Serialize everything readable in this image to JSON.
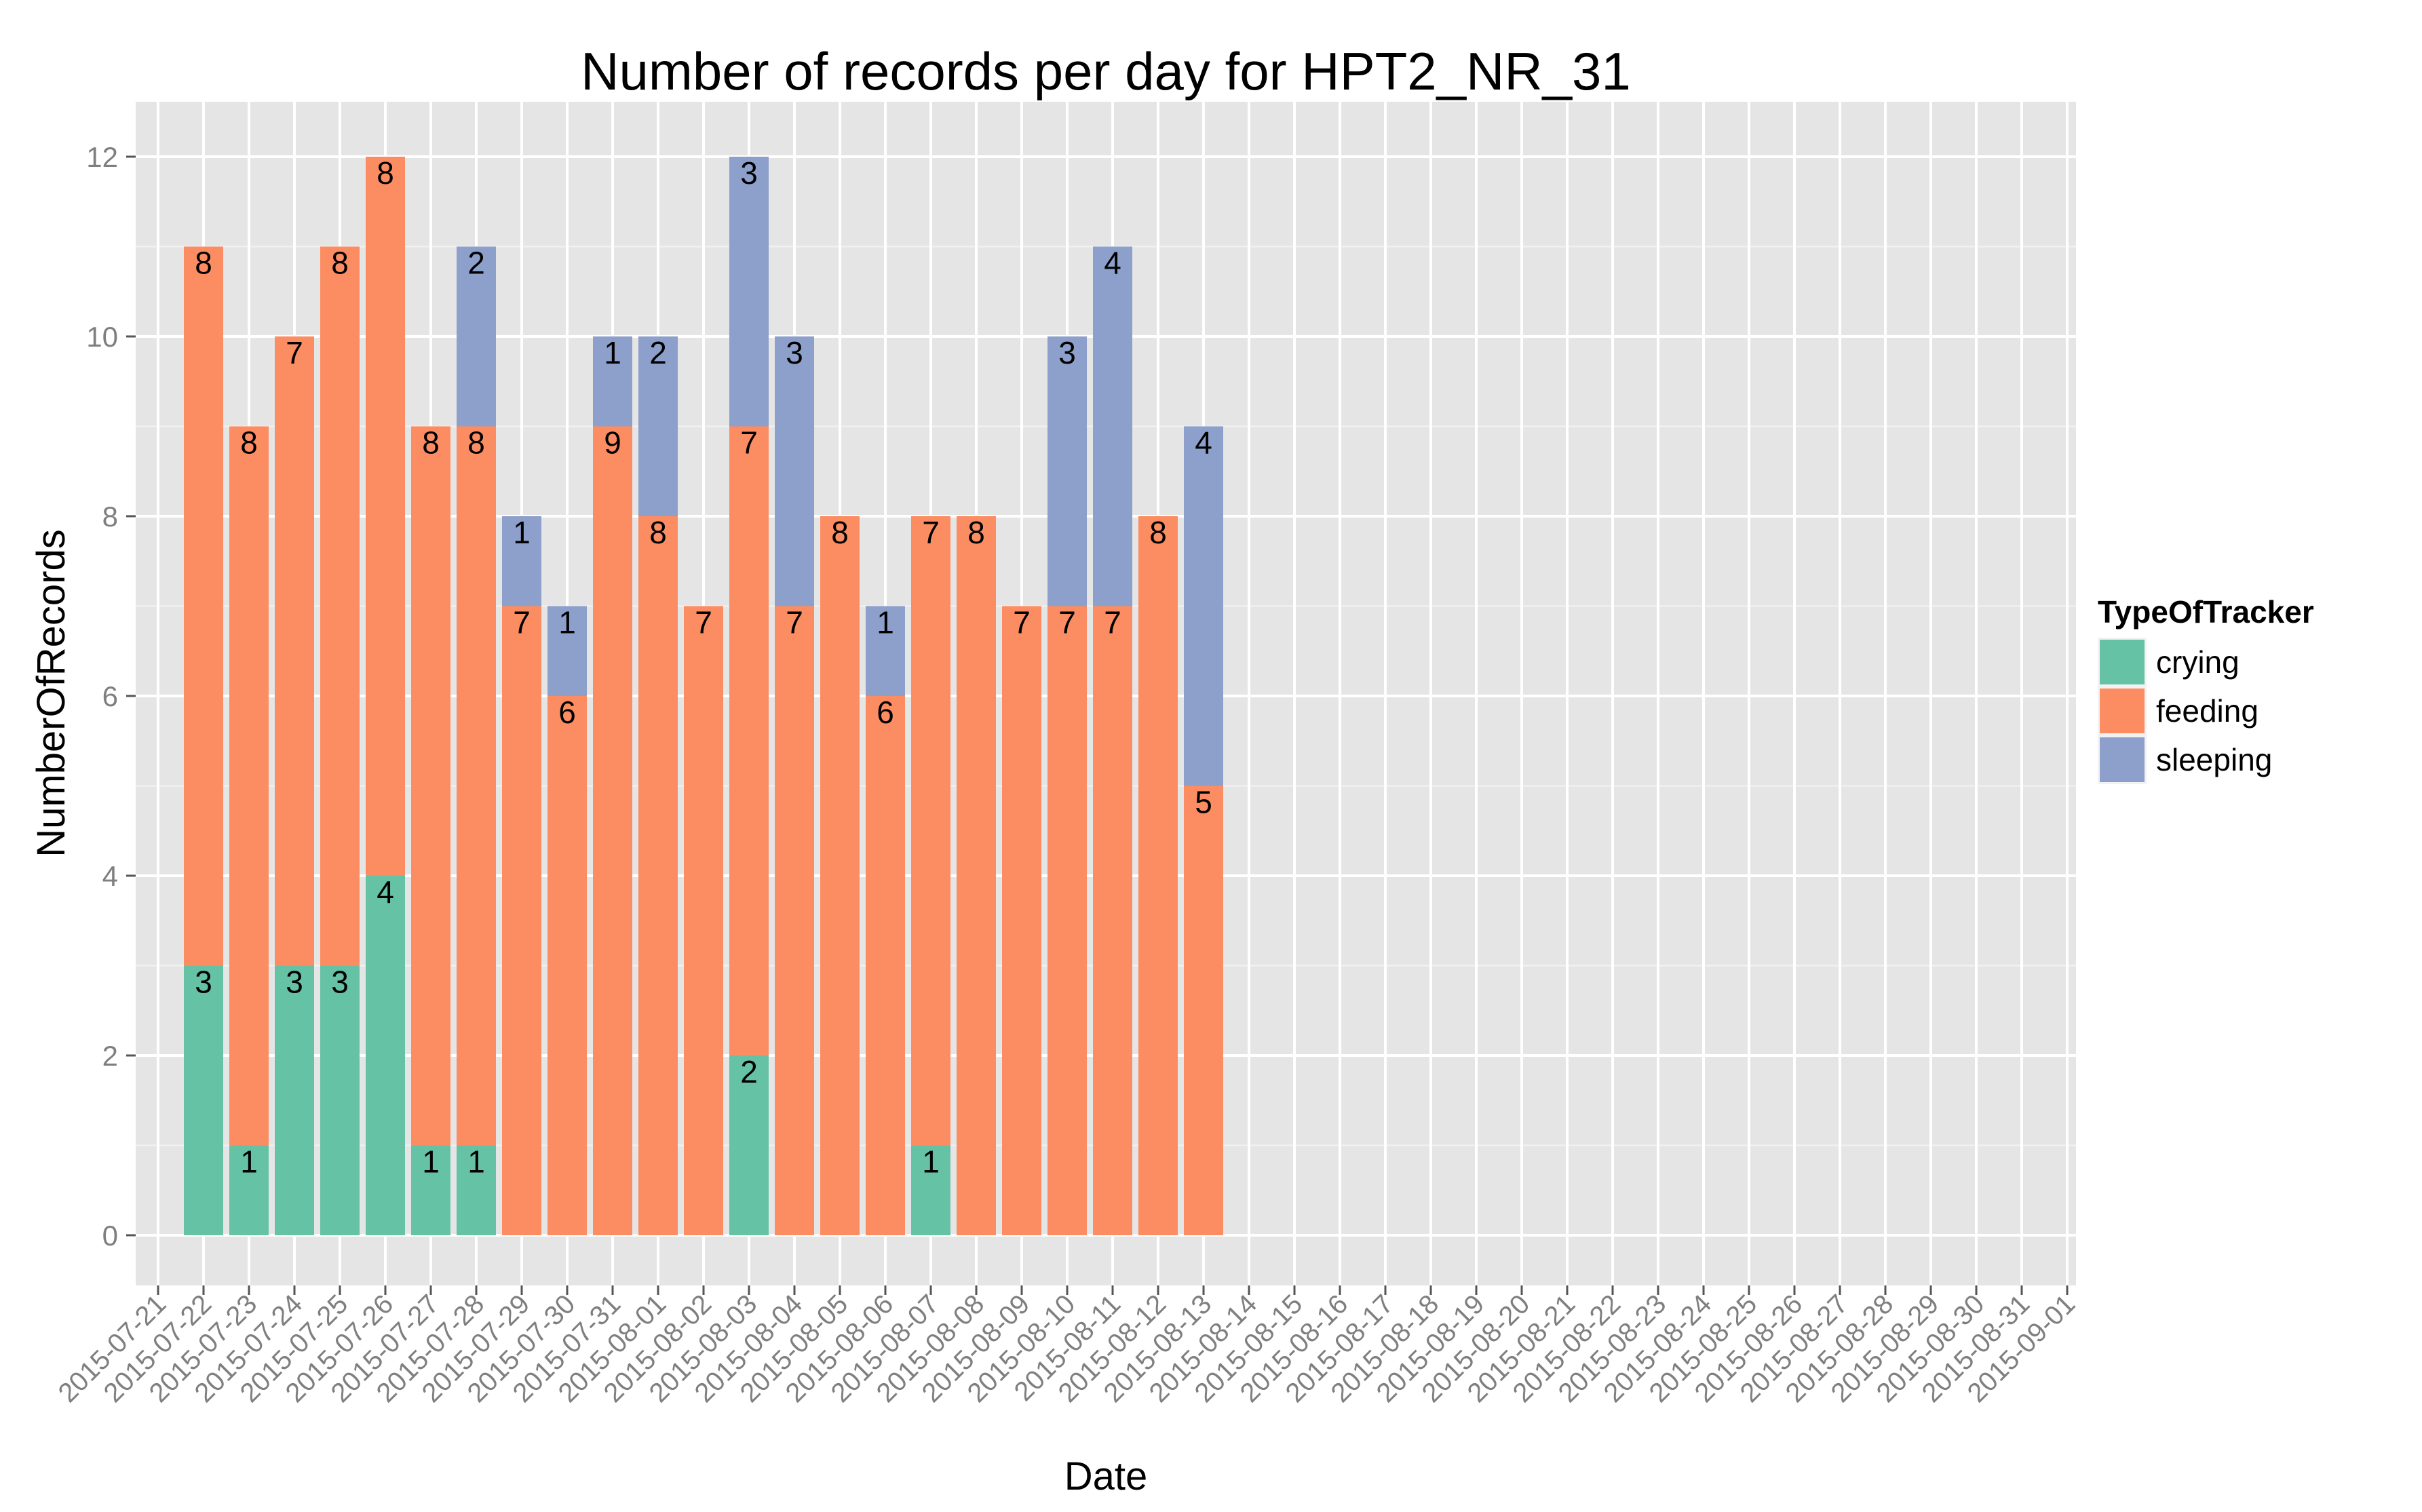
{
  "chart_data": {
    "type": "bar",
    "stacked": true,
    "title": "Number of records per day for HPT2_NR_31",
    "xlabel": "Date",
    "ylabel": "NumberOfRecords",
    "ylim": [
      0,
      12.5
    ],
    "yticks": [
      0,
      2,
      4,
      6,
      8,
      10,
      12
    ],
    "grid": true,
    "legend": {
      "title": "TypeOfTracker",
      "placement": "right",
      "entries": [
        "crying",
        "feeding",
        "sleeping"
      ]
    },
    "colors": {
      "crying": "#66c2a5",
      "feeding": "#fc8d62",
      "sleeping": "#8da0cb"
    },
    "x_ticks": [
      "2015-07-21",
      "2015-07-22",
      "2015-07-23",
      "2015-07-24",
      "2015-07-25",
      "2015-07-26",
      "2015-07-27",
      "2015-07-28",
      "2015-07-29",
      "2015-07-30",
      "2015-07-31",
      "2015-08-01",
      "2015-08-02",
      "2015-08-03",
      "2015-08-04",
      "2015-08-05",
      "2015-08-06",
      "2015-08-07",
      "2015-08-08",
      "2015-08-09",
      "2015-08-10",
      "2015-08-11",
      "2015-08-12",
      "2015-08-13",
      "2015-08-14",
      "2015-08-15",
      "2015-08-16",
      "2015-08-17",
      "2015-08-18",
      "2015-08-19",
      "2015-08-20",
      "2015-08-21",
      "2015-08-22",
      "2015-08-23",
      "2015-08-24",
      "2015-08-25",
      "2015-08-26",
      "2015-08-27",
      "2015-08-28",
      "2015-08-29",
      "2015-08-30",
      "2015-08-31",
      "2015-09-01"
    ],
    "x": [
      "2015-07-22",
      "2015-07-23",
      "2015-07-24",
      "2015-07-25",
      "2015-07-26",
      "2015-07-27",
      "2015-07-28",
      "2015-07-29",
      "2015-07-30",
      "2015-07-31",
      "2015-08-01",
      "2015-08-02",
      "2015-08-03",
      "2015-08-04",
      "2015-08-05",
      "2015-08-06",
      "2015-08-07",
      "2015-08-08",
      "2015-08-09",
      "2015-08-10",
      "2015-08-11",
      "2015-08-12",
      "2015-08-13"
    ],
    "series": [
      {
        "name": "crying",
        "values": [
          3,
          1,
          3,
          3,
          4,
          1,
          1,
          0,
          0,
          0,
          0,
          0,
          2,
          0,
          0,
          0,
          1,
          0,
          0,
          0,
          0,
          0,
          0
        ]
      },
      {
        "name": "feeding",
        "values": [
          8,
          8,
          7,
          8,
          8,
          8,
          8,
          7,
          6,
          9,
          8,
          7,
          7,
          7,
          8,
          6,
          7,
          8,
          7,
          7,
          7,
          8,
          5
        ]
      },
      {
        "name": "sleeping",
        "values": [
          0,
          0,
          0,
          0,
          0,
          0,
          2,
          1,
          1,
          1,
          2,
          0,
          3,
          3,
          0,
          1,
          0,
          0,
          0,
          3,
          4,
          0,
          4
        ]
      }
    ]
  }
}
